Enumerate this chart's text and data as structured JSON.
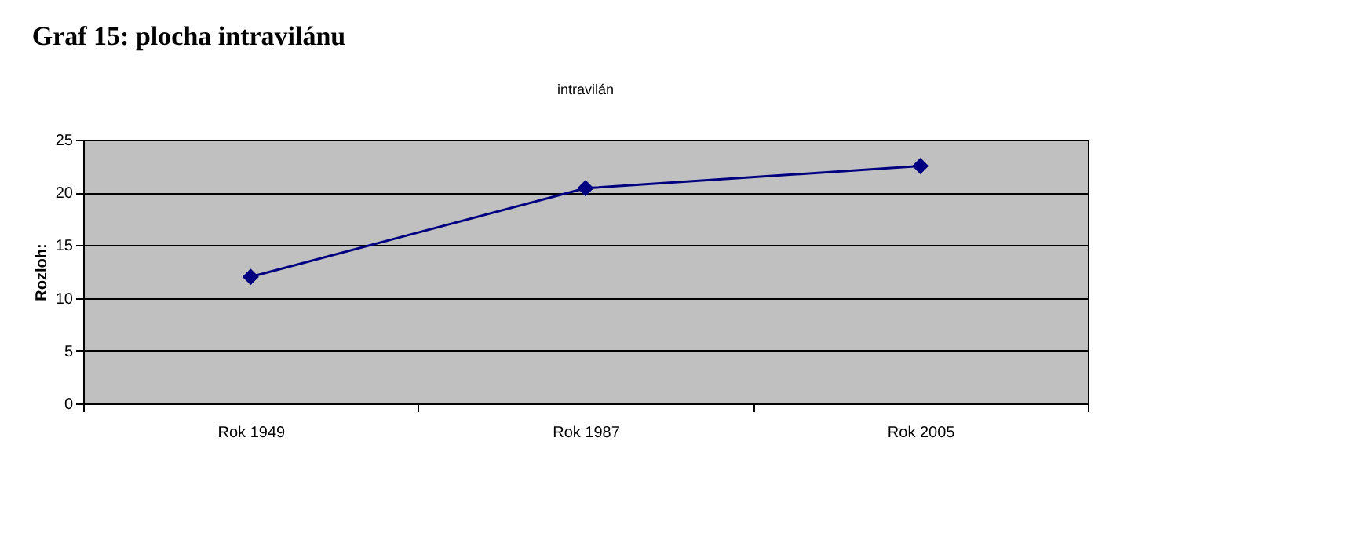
{
  "chart_data": {
    "type": "line",
    "title": "Graf 15: plocha  intravilánu",
    "subtitle": "intravilán",
    "ylabel": "Rozloh:",
    "categories": [
      "Rok 1949",
      "Rok 1987",
      "Rok 2005"
    ],
    "series": [
      {
        "color": "#000080",
        "values": [
          12,
          20.4,
          22.5
        ]
      }
    ],
    "ylim": [
      0,
      25
    ],
    "yticks": [
      0,
      5,
      10,
      15,
      20,
      25
    ],
    "grid": "y",
    "marker": "diamond",
    "line_style": "solid"
  }
}
